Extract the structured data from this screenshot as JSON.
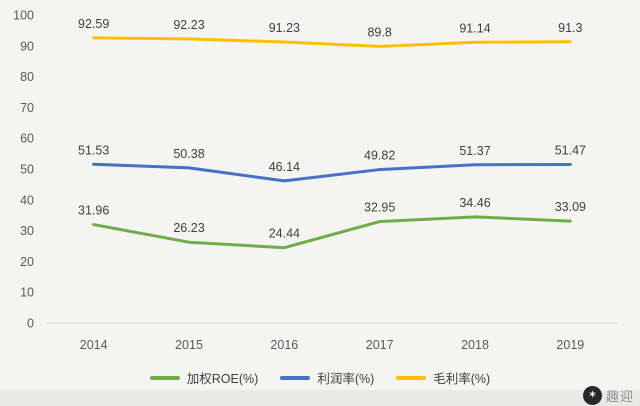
{
  "chart_data": {
    "type": "line",
    "title": "",
    "categories": [
      "2014",
      "2015",
      "2016",
      "2017",
      "2018",
      "2019"
    ],
    "series": [
      {
        "name": "加权ROE(%)",
        "color": "#70ad47",
        "values": [
          31.96,
          26.23,
          24.44,
          32.95,
          34.46,
          33.09
        ]
      },
      {
        "name": "利润率(%)",
        "color": "#4472c4",
        "values": [
          51.53,
          50.38,
          46.14,
          49.82,
          51.37,
          51.47
        ]
      },
      {
        "name": "毛利率(%)",
        "color": "#ffc000",
        "values": [
          92.59,
          92.23,
          91.23,
          89.8,
          91.14,
          91.3
        ]
      }
    ],
    "xlabel": "",
    "ylabel": "",
    "ylim": [
      0,
      100
    ],
    "yticks": [
      0,
      10,
      20,
      30,
      40,
      50,
      60,
      70,
      80,
      90,
      100
    ],
    "grid": false,
    "legend_position": "bottom",
    "data_labels": true
  },
  "watermark": {
    "logo_icon": "star-burst-icon",
    "logo_glyph": "✶",
    "text": "趣迎"
  }
}
